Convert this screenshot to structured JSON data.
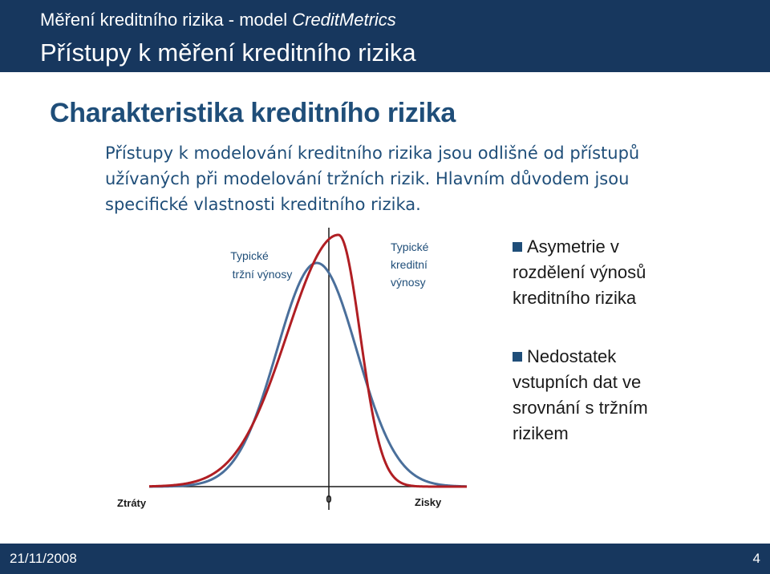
{
  "header": {
    "subtitle_prefix": "Měření kreditního rizika - model ",
    "subtitle_italic": "CreditMetrics",
    "main_title": "Přístupy k měření kreditního rizika"
  },
  "slide_title": "Charakteristika kreditního rizika",
  "intro_lines": [
    "Přístupy k modelování kreditního rizika jsou odlišné od přístupů",
    "užívaných při modelování tržních rizik. Hlavním důvodem jsou",
    "specifické vlastnosti kreditního rizika."
  ],
  "figure": {
    "market_label_1": "Typické",
    "market_label_2": "tržní výnosy",
    "credit_label_1": "Typické",
    "credit_label_2": "kreditní",
    "credit_label_3": "výnosy",
    "axis_left": "Ztráty",
    "axis_zero": "0",
    "axis_right": "Zisky",
    "colors": {
      "market": "#4a6f9b",
      "credit": "#b01e23",
      "label": "#1f4e79"
    }
  },
  "bullets": [
    {
      "lines": [
        "Asymetrie v",
        "rozdělení výnosů",
        "kreditního rizika"
      ]
    },
    {
      "lines": [
        "Nedostatek",
        "vstupních dat ve",
        "srovnání s tržním",
        "rizikem"
      ]
    }
  ],
  "footer": {
    "date": "21/11/2008",
    "page": "4"
  }
}
